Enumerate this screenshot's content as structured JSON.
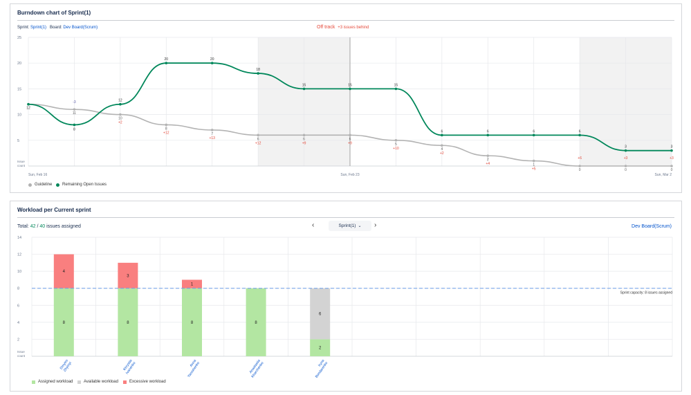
{
  "burndown": {
    "title": "Burndown chart of Sprint(1)",
    "sprint_label": "Sprint:",
    "sprint_value": "Sprint(1)",
    "board_label": "Board:",
    "board_value": "Dev Board(Scrum)",
    "status": "Off track",
    "status_detail": "+3 issues behind",
    "legend": [
      "Guideline",
      "Remaining Open Issues"
    ]
  },
  "workload": {
    "title": "Workload per Current sprint",
    "total_label": "Total:",
    "total_assigned": "42",
    "total_sep": "/",
    "total_capacity": "40",
    "total_suffix": "issues assigned",
    "sprint_selector": "Sprint(1)",
    "board_link": "Dev Board(Scrum)",
    "legend": [
      "Assigned workload",
      "Available workload",
      "Excessive workload"
    ]
  },
  "chart_data": [
    {
      "type": "line",
      "title": "Burndown chart of Sprint(1)",
      "ylabel": "Issue count",
      "ylim": [
        0,
        25
      ],
      "yticks": [
        5,
        10,
        15,
        20,
        25
      ],
      "xtick_labels": [
        "Sun, Feb 16",
        "Sun, Feb 23",
        "Sun, Mar 2"
      ],
      "xtick_index": [
        0,
        7,
        14
      ],
      "today_index": 7,
      "weekend_shading": [
        [
          5,
          7
        ],
        [
          12,
          14
        ]
      ],
      "grid": true,
      "legend_position": "bottom-left",
      "series": [
        {
          "name": "Guideline",
          "color": "#b3b3b3",
          "values": [
            12,
            11,
            10,
            8,
            7,
            6,
            6,
            6,
            5,
            4,
            2,
            1,
            0,
            0,
            0
          ],
          "labels": [
            "",
            "11",
            "10",
            "8",
            "7",
            "6",
            "6",
            "6",
            "5",
            "4",
            "2",
            "1",
            "0",
            "0",
            "0"
          ],
          "deltas": [
            "",
            "",
            "+2",
            "+12",
            "+13",
            "+12",
            "+9",
            "+9",
            "+10",
            "+2",
            "+4",
            "+5",
            "",
            "",
            ""
          ]
        },
        {
          "name": "Remaining Open Issues",
          "color": "#00875a",
          "values": [
            12,
            8,
            12,
            20,
            20,
            18,
            15,
            15,
            15,
            6,
            6,
            6,
            6,
            3,
            3
          ],
          "labels": [
            "12",
            "8",
            "12",
            "20",
            "20",
            "18",
            "15",
            "15",
            "15",
            "6",
            "6",
            "6",
            "6",
            "3",
            "3"
          ],
          "top_deltas": [
            "",
            "-3",
            "",
            "",
            "",
            "",
            "",
            "",
            "",
            "",
            "",
            "",
            "+6",
            "+3",
            "+3"
          ]
        }
      ],
      "colors": {
        "grid": "#e6e8eb",
        "weekend": "#f2f2f2",
        "today": "#b0b0b0",
        "delta": "#e5493a",
        "axis_text": "#6b778c"
      }
    },
    {
      "type": "bar",
      "title": "Workload per Current sprint",
      "ylabel": "Issue count",
      "ylim": [
        0,
        14
      ],
      "yticks": [
        2,
        4,
        6,
        8,
        10,
        12,
        14
      ],
      "capacity": 8,
      "capacity_label": "Sprint capacity: 8 issues assigned",
      "categories": [
        "Dmytro Zhytnyi",
        "Khrystia Ivanenko",
        "Anna Yaroshenko",
        "Anastasiia Kharchenko",
        "Iryna Bondarenko"
      ],
      "columns": 10,
      "series": [
        {
          "name": "Assigned workload",
          "color": "#b3e6a2",
          "values": [
            8,
            8,
            8,
            8,
            2
          ]
        },
        {
          "name": "Available workload",
          "color": "#d3d3d3",
          "values": [
            0,
            0,
            0,
            0,
            6
          ]
        },
        {
          "name": "Excessive workload",
          "color": "#f97f7f",
          "values": [
            4,
            3,
            1,
            0,
            0
          ]
        }
      ],
      "colors": {
        "grid": "#e6e8eb",
        "capacity": "#6d9ee8",
        "axis_text": "#6b778c"
      }
    }
  ]
}
